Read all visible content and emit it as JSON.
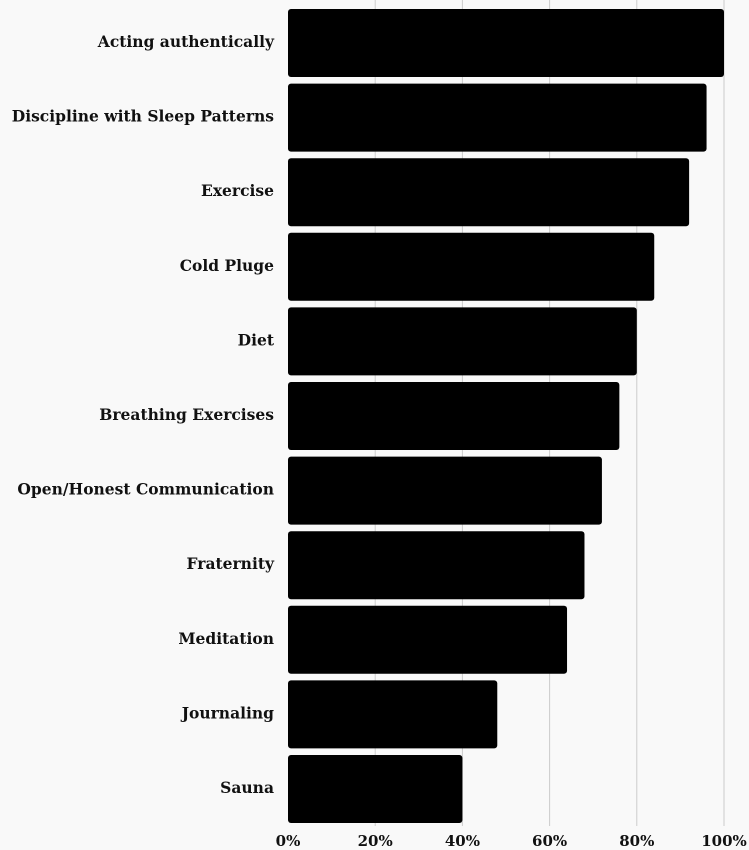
{
  "chart_data": {
    "type": "bar",
    "orientation": "horizontal",
    "title": "",
    "xlabel": "",
    "ylabel": "",
    "categories": [
      "Acting authentically",
      "Discipline with Sleep Patterns",
      "Exercise",
      "Cold Pluge",
      "Diet",
      "Breathing Exercises",
      "Open/Honest Communication",
      "Fraternity",
      "Meditation",
      "Journaling",
      "Sauna"
    ],
    "values": [
      100,
      96,
      92,
      84,
      80,
      76,
      72,
      68,
      64,
      48,
      40
    ],
    "xlim": [
      0,
      100
    ],
    "x_ticks": [
      "0%",
      "20%",
      "40%",
      "60%",
      "80%",
      "100%"
    ],
    "x_tick_values": [
      0,
      20,
      40,
      60,
      80,
      100
    ],
    "grid": "vertical",
    "legend": "none",
    "colors": {
      "bar": "#000000",
      "grid": "#cccccc",
      "background": "#f9f9f9",
      "text": "#111111"
    }
  }
}
